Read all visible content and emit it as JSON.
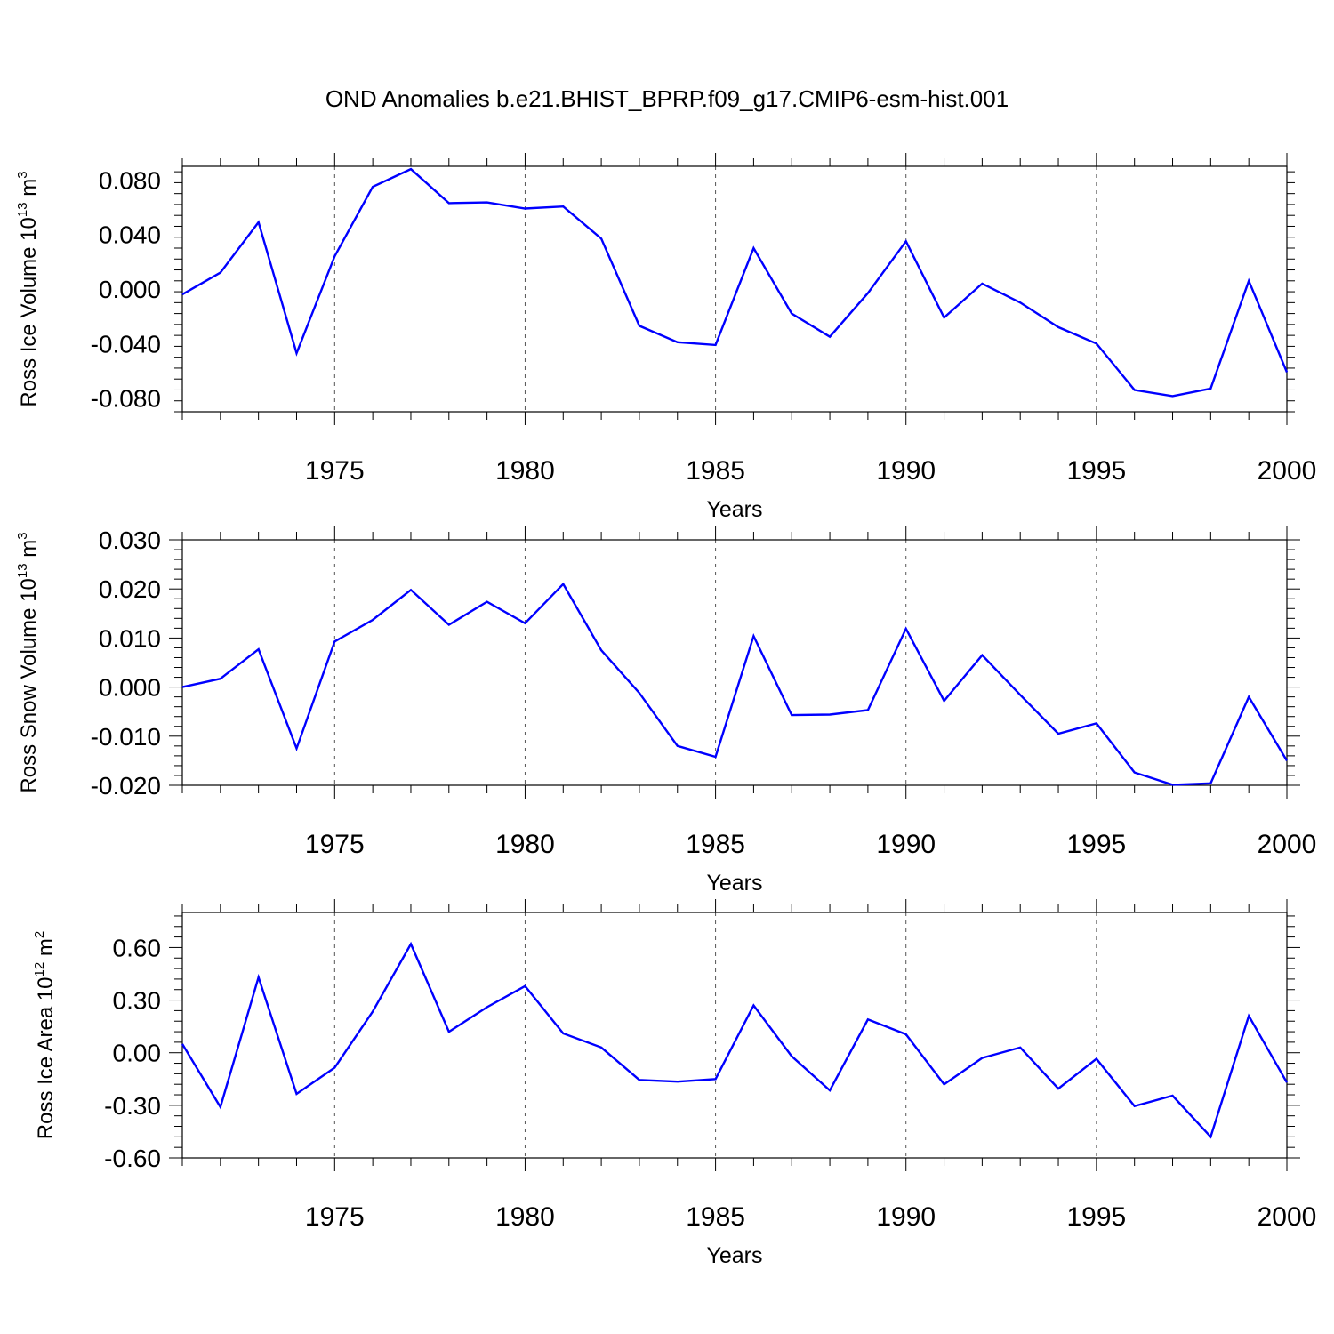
{
  "title": "OND Anomalies b.e21.BHIST_BPRP.f09_g17.CMIP6-esm-hist.001",
  "line_color": "#0000ff",
  "chart_data": [
    {
      "type": "line",
      "ylabel": "Ross Ice Volume 10",
      "ylabel_exp": "13",
      "ylabel_unit": " m",
      "ylabel_unit_exp": "3",
      "xlabel": "Years",
      "xlim": [
        1971,
        2000
      ],
      "ylim": [
        -0.09,
        0.09
      ],
      "yticks": [
        -0.08,
        -0.04,
        0.0,
        0.04,
        0.08
      ],
      "ytick_labels": [
        "-0.080",
        "-0.040",
        "0.000",
        "0.040",
        "0.080"
      ],
      "xticks": [
        1975,
        1980,
        1985,
        1990,
        1995,
        2000
      ],
      "xtick_labels": [
        "1975",
        "1980",
        "1985",
        "1990",
        "1995",
        "2000"
      ],
      "x": [
        1971,
        1972,
        1973,
        1974,
        1975,
        1976,
        1977,
        1978,
        1979,
        1980,
        1981,
        1982,
        1983,
        1984,
        1985,
        1986,
        1987,
        1988,
        1989,
        1990,
        1991,
        1992,
        1993,
        1994,
        1995,
        1996,
        1997,
        1998,
        1999,
        2000
      ],
      "y": [
        -0.004,
        0.012,
        0.049,
        -0.047,
        0.024,
        0.075,
        0.088,
        0.063,
        0.0635,
        0.059,
        0.0605,
        0.037,
        -0.027,
        -0.039,
        -0.041,
        0.03,
        -0.018,
        -0.035,
        -0.003,
        0.035,
        -0.021,
        0.004,
        -0.01,
        -0.028,
        -0.04,
        -0.074,
        -0.0785,
        -0.073,
        0.006,
        -0.061
      ],
      "grid": "vertical dashed at labeled years"
    },
    {
      "type": "line",
      "ylabel": "Ross Snow Volume 10",
      "ylabel_exp": "13",
      "ylabel_unit": " m",
      "ylabel_unit_exp": "3",
      "xlabel": "Years",
      "xlim": [
        1971,
        2000
      ],
      "ylim": [
        -0.02,
        0.03
      ],
      "yticks": [
        -0.02,
        -0.01,
        0.0,
        0.01,
        0.02,
        0.03
      ],
      "ytick_labels": [
        "-0.020",
        "-0.010",
        "0.000",
        "0.010",
        "0.020",
        "0.030"
      ],
      "xticks": [
        1975,
        1980,
        1985,
        1990,
        1995,
        2000
      ],
      "xtick_labels": [
        "1975",
        "1980",
        "1985",
        "1990",
        "1995",
        "2000"
      ],
      "x": [
        1971,
        1972,
        1973,
        1974,
        1975,
        1976,
        1977,
        1978,
        1979,
        1980,
        1981,
        1982,
        1983,
        1984,
        1985,
        1986,
        1987,
        1988,
        1989,
        1990,
        1991,
        1992,
        1993,
        1994,
        1995,
        1996,
        1997,
        1998,
        1999,
        2000
      ],
      "y": [
        0.0,
        0.0017,
        0.0077,
        -0.0125,
        0.0093,
        0.0137,
        0.0198,
        0.0127,
        0.0174,
        0.013,
        0.021,
        0.0075,
        -0.0012,
        -0.012,
        -0.0142,
        0.0104,
        -0.0057,
        -0.0056,
        -0.0047,
        0.0119,
        -0.0028,
        0.0065,
        -0.0016,
        -0.0095,
        -0.0074,
        -0.0174,
        -0.0199,
        -0.0196,
        -0.002,
        -0.015
      ],
      "grid": "vertical dashed at labeled years"
    },
    {
      "type": "line",
      "ylabel": "Ross Ice Area 10",
      "ylabel_exp": "12",
      "ylabel_unit": " m",
      "ylabel_unit_exp": "2",
      "xlabel": "Years",
      "xlim": [
        1971,
        2000
      ],
      "ylim": [
        -0.6,
        0.8
      ],
      "yticks": [
        -0.6,
        -0.3,
        0.0,
        0.3,
        0.6
      ],
      "ytick_labels": [
        "-0.60",
        "-0.30",
        "0.00",
        "0.30",
        "0.60"
      ],
      "xticks": [
        1975,
        1980,
        1985,
        1990,
        1995,
        2000
      ],
      "xtick_labels": [
        "1975",
        "1980",
        "1985",
        "1990",
        "1995",
        "2000"
      ],
      "x": [
        1971,
        1972,
        1973,
        1974,
        1975,
        1976,
        1977,
        1978,
        1979,
        1980,
        1981,
        1982,
        1983,
        1984,
        1985,
        1986,
        1987,
        1988,
        1989,
        1990,
        1991,
        1992,
        1993,
        1994,
        1995,
        1996,
        1997,
        1998,
        1999,
        2000
      ],
      "y": [
        0.05,
        -0.31,
        0.43,
        -0.235,
        -0.085,
        0.235,
        0.62,
        0.12,
        0.26,
        0.38,
        0.11,
        0.03,
        -0.155,
        -0.165,
        -0.15,
        0.27,
        -0.02,
        -0.215,
        0.19,
        0.105,
        -0.18,
        -0.03,
        0.03,
        -0.205,
        -0.035,
        -0.305,
        -0.245,
        -0.48,
        0.21,
        -0.17
      ],
      "grid": "vertical dashed at labeled years"
    }
  ]
}
